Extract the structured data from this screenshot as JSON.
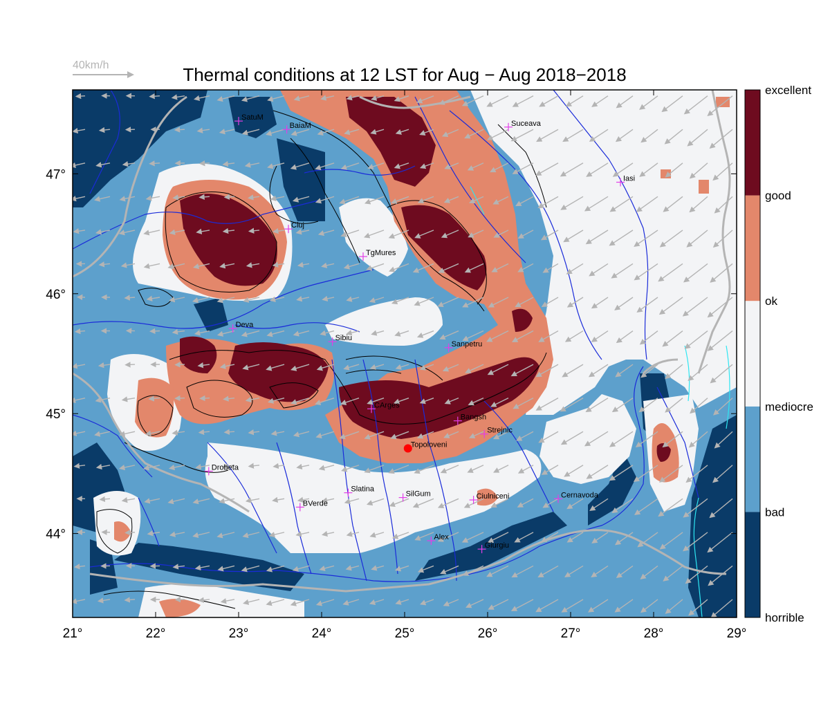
{
  "title": "Thermal conditions at 12 LST for Aug − Aug  2018−2018",
  "wind_reference": {
    "label": "40km/h",
    "speed_kmh": 40
  },
  "map": {
    "lon_range": [
      21,
      29
    ],
    "lat_range": [
      43.3,
      47.7
    ],
    "x_ticks": [
      21,
      22,
      23,
      24,
      25,
      26,
      27,
      28,
      29
    ],
    "y_ticks": [
      44,
      45,
      46,
      47
    ],
    "x_tick_labels": [
      "21°",
      "22°",
      "23°",
      "24°",
      "25°",
      "26°",
      "27°",
      "28°",
      "29°"
    ],
    "y_tick_labels": [
      "44°",
      "45°",
      "46°",
      "47°"
    ]
  },
  "colorbar": {
    "levels": [
      {
        "label": "horrible",
        "color": "#0a3b68"
      },
      {
        "label": "bad",
        "color": "#5da0cc"
      },
      {
        "label": "mediocre",
        "color": "#f3f4f6"
      },
      {
        "label": "ok",
        "color": "#e3876b"
      },
      {
        "label": "good",
        "color": "#6e0b1f"
      }
    ],
    "boundary_labels": [
      "horrible",
      "bad",
      "mediocre",
      "ok",
      "good",
      "excellent"
    ]
  },
  "cities": [
    {
      "name": "SatuM",
      "lon": 23.0,
      "lat": 47.44
    },
    {
      "name": "BaiaM",
      "lon": 23.58,
      "lat": 47.37
    },
    {
      "name": "Suceava",
      "lon": 26.25,
      "lat": 47.39
    },
    {
      "name": "Iasi",
      "lon": 27.6,
      "lat": 46.93
    },
    {
      "name": "Cluj",
      "lon": 23.6,
      "lat": 46.54
    },
    {
      "name": "TgMures",
      "lon": 24.5,
      "lat": 46.31
    },
    {
      "name": "Deva",
      "lon": 22.93,
      "lat": 45.71
    },
    {
      "name": "Sibiu",
      "lon": 24.13,
      "lat": 45.6
    },
    {
      "name": "Sanpetru",
      "lon": 25.53,
      "lat": 45.55
    },
    {
      "name": "CArges",
      "lon": 24.6,
      "lat": 45.04
    },
    {
      "name": "Bangsh",
      "lon": 25.64,
      "lat": 44.94
    },
    {
      "name": "Strejnic",
      "lon": 25.96,
      "lat": 44.83
    },
    {
      "name": "Topoloveni",
      "lon": 25.04,
      "lat": 44.71
    },
    {
      "name": "Drobeta",
      "lon": 22.64,
      "lat": 44.52
    },
    {
      "name": "Slatina",
      "lon": 24.32,
      "lat": 44.34
    },
    {
      "name": "SilGum",
      "lon": 24.98,
      "lat": 44.3
    },
    {
      "name": "Cernavoda",
      "lon": 26.85,
      "lat": 44.29
    },
    {
      "name": "Ciulniceni",
      "lon": 25.83,
      "lat": 44.28
    },
    {
      "name": "BVerde",
      "lon": 23.74,
      "lat": 44.22
    },
    {
      "name": "Alex",
      "lon": 25.32,
      "lat": 43.94
    },
    {
      "name": "Giurgiu",
      "lon": 25.93,
      "lat": 43.87
    }
  ],
  "highlighted_site": {
    "name": "Topoloveni",
    "lon": 25.04,
    "lat": 44.71,
    "color": "#ff0000"
  },
  "colors": {
    "river": "#1a2bd9",
    "border": "#b4b4b4",
    "wind_arrow": "#b4b4b4",
    "contour": "#000000",
    "coast": "#2ee6f2",
    "city_marker": "#e23ee8"
  }
}
